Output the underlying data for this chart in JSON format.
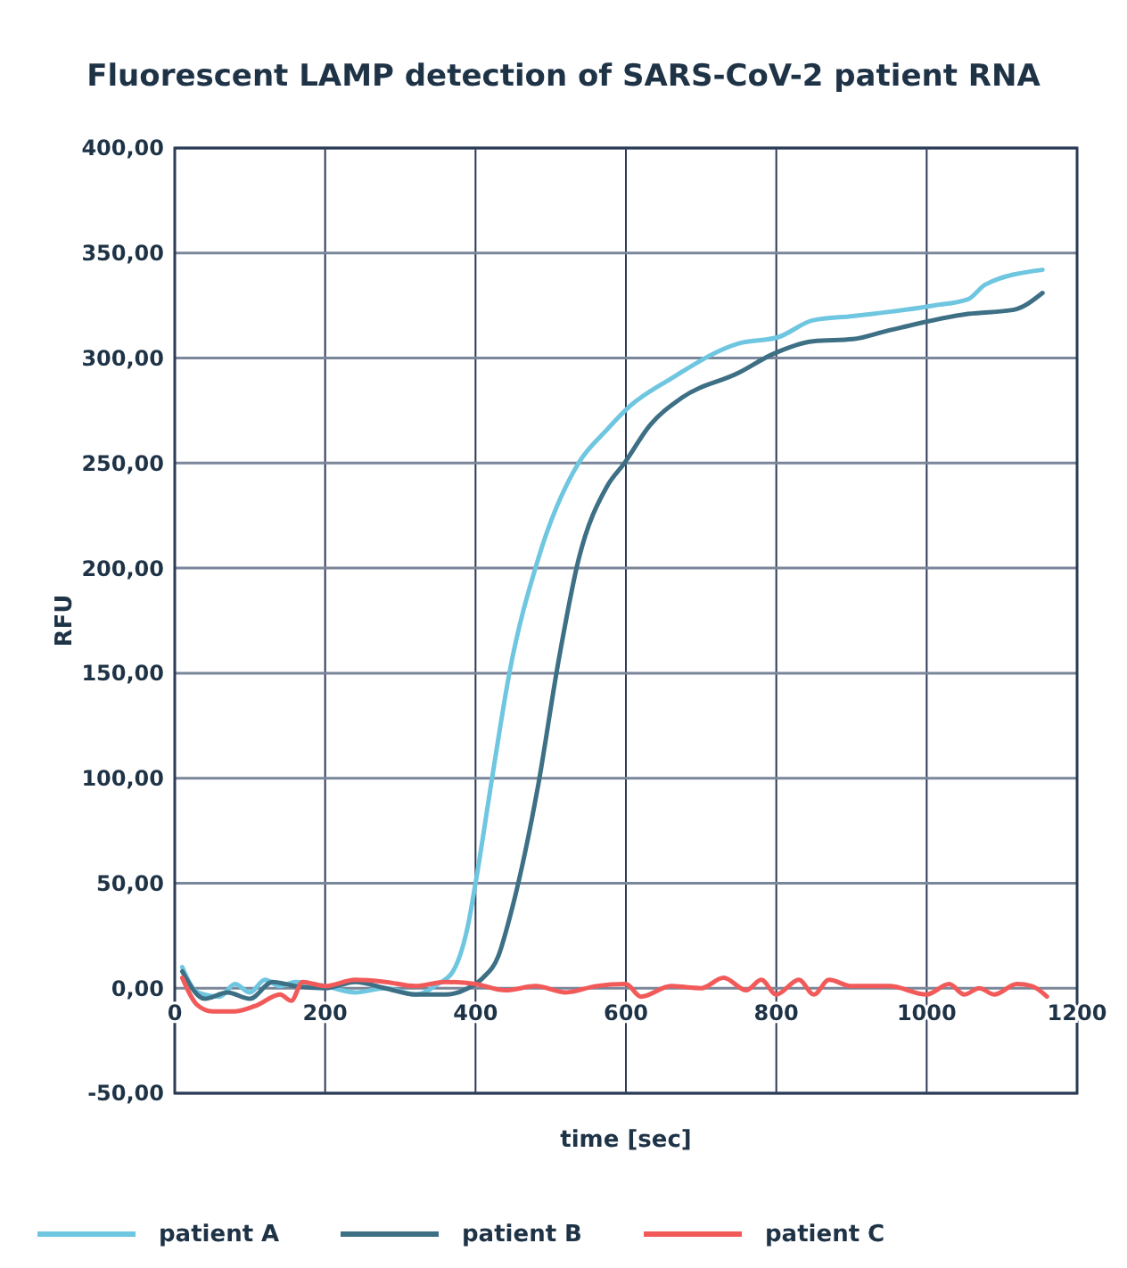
{
  "chart_data": {
    "type": "line",
    "title": "Fluorescent LAMP detection of SARS-CoV-2 patient RNA",
    "xlabel": "time [sec]",
    "ylabel": "RFU",
    "xlim": [
      0,
      1200
    ],
    "xticks": [
      0,
      200,
      400,
      600,
      800,
      1000,
      1200
    ],
    "ylim": [
      -50,
      400
    ],
    "yticks": [
      {
        "value": -50,
        "label": "-50,00"
      },
      {
        "value": 0,
        "label": "0,00"
      },
      {
        "value": 50,
        "label": "50,00"
      },
      {
        "value": 100,
        "label": "100,00"
      },
      {
        "value": 150,
        "label": "150,00"
      },
      {
        "value": 200,
        "label": "200,00"
      },
      {
        "value": 250,
        "label": "250,00"
      },
      {
        "value": 300,
        "label": "300,00"
      },
      {
        "value": 350,
        "label": "350,00"
      },
      {
        "value": 400,
        "label": "400,00"
      }
    ],
    "grid": true,
    "legend": "bottom",
    "marker": "none",
    "line_style": "solid",
    "series": [
      {
        "name": "patient A",
        "color": "#6ec6e0",
        "x": [
          10,
          30,
          60,
          80,
          100,
          120,
          140,
          160,
          200,
          240,
          280,
          320,
          350,
          370,
          390,
          400,
          422,
          445,
          483,
          537,
          575,
          605,
          659,
          750,
          803,
          849,
          902,
          1009,
          1055,
          1078,
          1154
        ],
        "values": [
          10,
          -2,
          -4,
          2,
          -2,
          4,
          1,
          3,
          1,
          -2,
          0,
          -3,
          2,
          8,
          30,
          50,
          100,
          150,
          204,
          250,
          266,
          277,
          290,
          307,
          310,
          318,
          320,
          325,
          328,
          335,
          342
        ]
      },
      {
        "name": "patient B",
        "color": "#3d6f85",
        "x": [
          10,
          40,
          70,
          100,
          130,
          160,
          200,
          240,
          280,
          320,
          360,
          390,
          410,
          430,
          445,
          483,
          510,
          537,
          575,
          598,
          632,
          674,
          750,
          796,
          849,
          902,
          948,
          1055,
          1116,
          1154
        ],
        "values": [
          8,
          -5,
          -2,
          -5,
          3,
          1,
          0,
          3,
          0,
          -3,
          -3,
          0,
          5,
          15,
          33,
          96,
          155,
          204,
          239,
          250,
          268,
          281,
          293,
          302,
          308,
          309,
          313,
          321,
          323,
          331
        ]
      },
      {
        "name": "patient C",
        "color": "#f25a5a",
        "x": [
          10,
          30,
          50,
          80,
          110,
          140,
          155,
          170,
          200,
          240,
          280,
          320,
          360,
          400,
          440,
          480,
          520,
          560,
          600,
          620,
          660,
          700,
          730,
          760,
          780,
          800,
          830,
          850,
          870,
          900,
          950,
          1000,
          1030,
          1050,
          1070,
          1090,
          1120,
          1140,
          1160
        ],
        "values": [
          5,
          -8,
          -11,
          -11,
          -8,
          -3,
          -6,
          3,
          1,
          4,
          3,
          1,
          3,
          2,
          -1,
          1,
          -2,
          1,
          2,
          -4,
          1,
          0,
          5,
          -1,
          4,
          -3,
          4,
          -3,
          4,
          1,
          1,
          -3,
          2,
          -3,
          0,
          -3,
          2,
          1,
          -4
        ]
      }
    ]
  }
}
